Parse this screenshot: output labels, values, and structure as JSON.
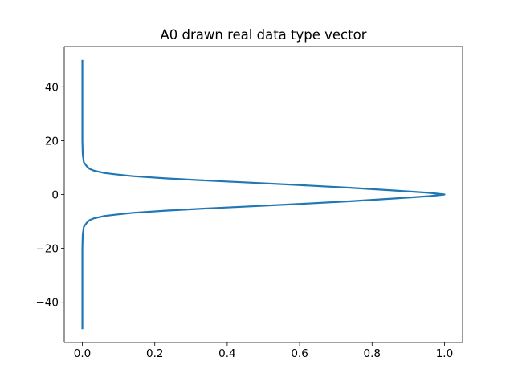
{
  "chart_data": {
    "type": "line",
    "title": "A0 drawn real data type vector",
    "xlabel": "",
    "ylabel": "",
    "xlim": [
      -0.05,
      1.05
    ],
    "ylim": [
      -55,
      55
    ],
    "xticks": [
      0.0,
      0.2,
      0.4,
      0.6,
      0.8,
      1.0
    ],
    "xtick_labels": [
      "0.0",
      "0.2",
      "0.4",
      "0.6",
      "0.8",
      "1.0"
    ],
    "yticks": [
      -40,
      -20,
      0,
      20,
      40
    ],
    "ytick_labels": [
      "−40",
      "−20",
      "0",
      "20",
      "40"
    ],
    "grid": false,
    "legend": "none",
    "series": [
      {
        "color": "#1f77b4",
        "points": [
          [
            0.0,
            -50
          ],
          [
            0.0,
            -30
          ],
          [
            0.0,
            -20
          ],
          [
            0.001,
            -15
          ],
          [
            0.004,
            -12
          ],
          [
            0.012,
            -10.5
          ],
          [
            0.02,
            -9.5
          ],
          [
            0.033,
            -8.8
          ],
          [
            0.06,
            -8
          ],
          [
            0.09,
            -7.5
          ],
          [
            0.14,
            -6.8
          ],
          [
            0.23,
            -6
          ],
          [
            0.34,
            -5.2
          ],
          [
            0.48,
            -4.3
          ],
          [
            0.6,
            -3.5
          ],
          [
            0.74,
            -2.5
          ],
          [
            0.86,
            -1.5
          ],
          [
            0.96,
            -0.6
          ],
          [
            1.0,
            0.0
          ],
          [
            0.96,
            0.6
          ],
          [
            0.86,
            1.5
          ],
          [
            0.74,
            2.5
          ],
          [
            0.6,
            3.5
          ],
          [
            0.48,
            4.3
          ],
          [
            0.34,
            5.2
          ],
          [
            0.23,
            6
          ],
          [
            0.14,
            6.8
          ],
          [
            0.09,
            7.5
          ],
          [
            0.06,
            8
          ],
          [
            0.033,
            8.8
          ],
          [
            0.02,
            9.5
          ],
          [
            0.012,
            10.5
          ],
          [
            0.004,
            12
          ],
          [
            0.001,
            15
          ],
          [
            0.0,
            20
          ],
          [
            0.0,
            30
          ],
          [
            0.0,
            50
          ]
        ]
      }
    ]
  }
}
